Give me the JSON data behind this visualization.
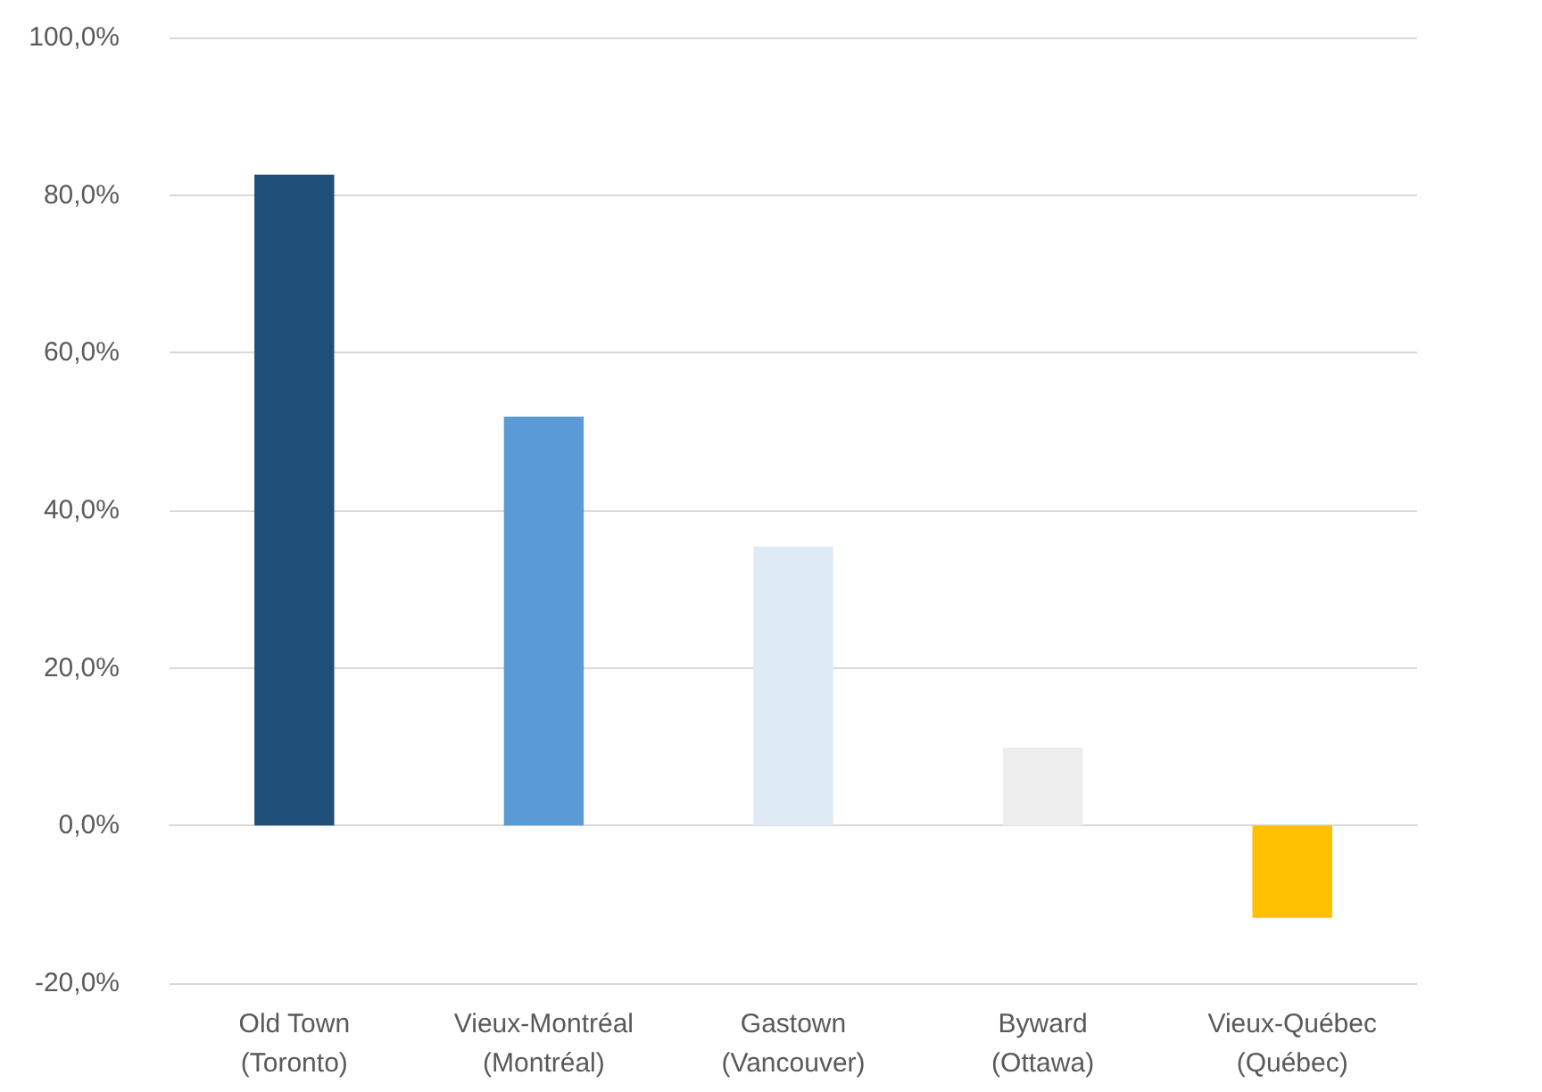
{
  "chart_data": {
    "type": "bar",
    "categories": [
      "Old Town\n(Toronto)",
      "Vieux-Montréal\n(Montréal)",
      "Gastown\n(Vancouver)",
      "Byward\n(Ottawa)",
      "Vieux-Québec\n(Québec)"
    ],
    "values": [
      82.6,
      51.9,
      35.4,
      9.9,
      -11.7
    ],
    "colors": [
      "#1f4e79",
      "#5b9bd5",
      "#deebf7",
      "#ededed",
      "#ffc000"
    ],
    "ylim": [
      -20,
      100
    ],
    "yticks": [
      {
        "value": -20,
        "label": "-20,0%"
      },
      {
        "value": 0,
        "label": "0,0%"
      },
      {
        "value": 20,
        "label": "20,0%"
      },
      {
        "value": 40,
        "label": "40,0%"
      },
      {
        "value": 60,
        "label": "60,0%"
      },
      {
        "value": 80,
        "label": "80,0%"
      },
      {
        "value": 100,
        "label": "100,0%"
      }
    ],
    "grid": "y"
  }
}
